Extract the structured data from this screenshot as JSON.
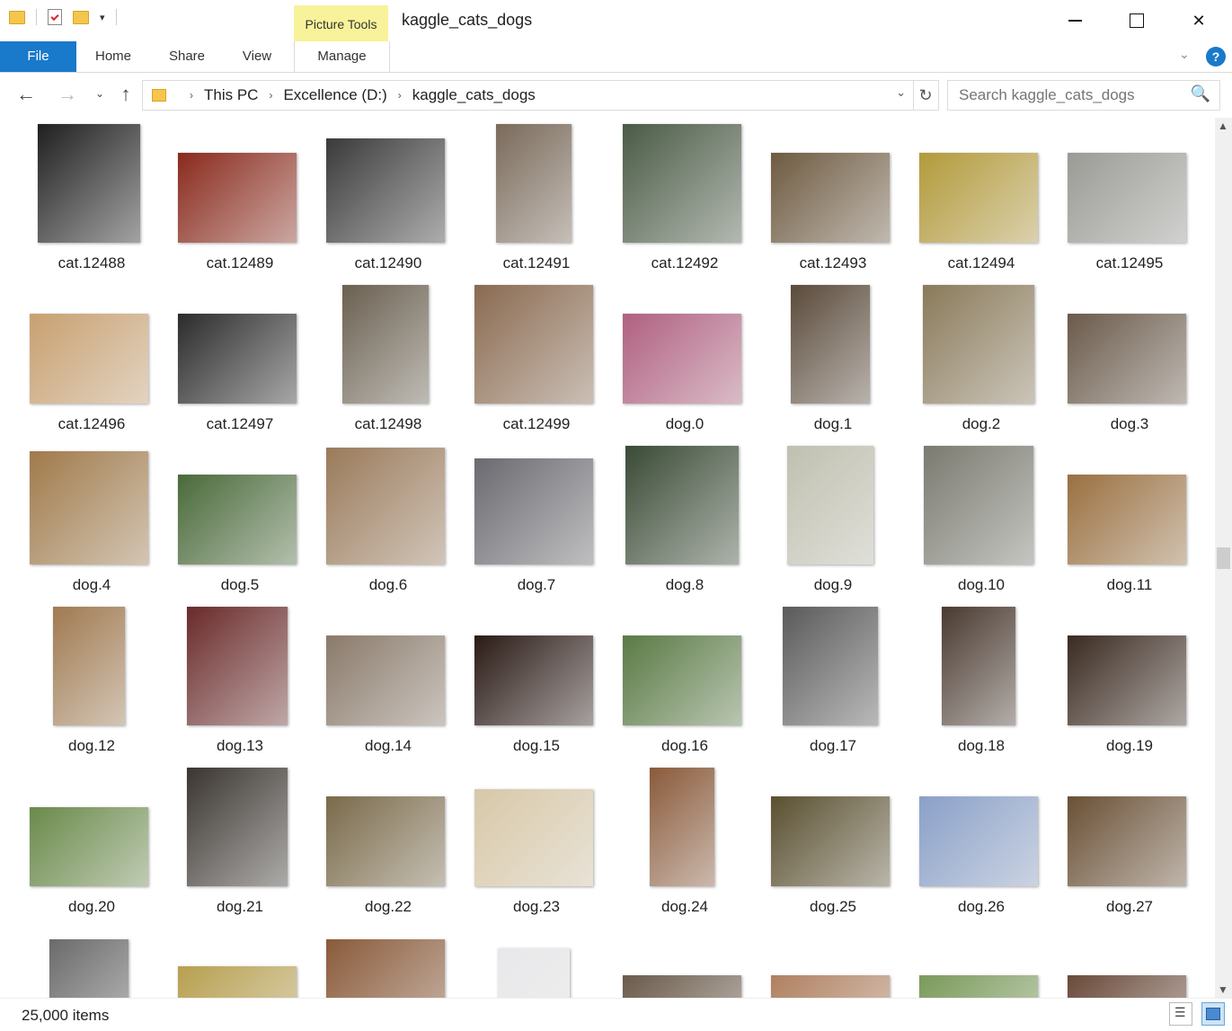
{
  "window": {
    "title": "kaggle_cats_dogs",
    "context_tab_group": "Picture Tools",
    "minimize": "—",
    "maximize": "",
    "close": "✕"
  },
  "quick_access": {
    "dropdown": "▾"
  },
  "ribbon": {
    "tabs": {
      "file": "File",
      "home": "Home",
      "share": "Share",
      "view": "View",
      "manage": "Manage"
    },
    "collapse": "⌄",
    "help": "?"
  },
  "nav": {
    "back": "←",
    "forward": "→",
    "recent": "⌄",
    "up": "↑",
    "breadcrumb": [
      "This PC",
      "Excellence (D:)",
      "kaggle_cats_dogs"
    ],
    "breadcrumb_sep": "›",
    "dropdown": "⌄",
    "refresh": "↻"
  },
  "search": {
    "placeholder": "Search kaggle_cats_dogs",
    "icon": "🔍"
  },
  "files": [
    {
      "name": "cat.12488",
      "color": "#1f1f1f"
    },
    {
      "name": "cat.12489",
      "color": "#8a2a1c"
    },
    {
      "name": "cat.12490",
      "color": "#3a3a3a"
    },
    {
      "name": "cat.12491",
      "color": "#7a6a5a"
    },
    {
      "name": "cat.12492",
      "color": "#4a5a45"
    },
    {
      "name": "cat.12493",
      "color": "#6e5a40"
    },
    {
      "name": "cat.12494",
      "color": "#b39a3a"
    },
    {
      "name": "cat.12495",
      "color": "#9a9a95"
    },
    {
      "name": "cat.12496",
      "color": "#c8a070"
    },
    {
      "name": "cat.12497",
      "color": "#2b2b2b"
    },
    {
      "name": "cat.12498",
      "color": "#6a6050"
    },
    {
      "name": "cat.12499",
      "color": "#8a6a50"
    },
    {
      "name": "dog.0",
      "color": "#b06080"
    },
    {
      "name": "dog.1",
      "color": "#5a4a3a"
    },
    {
      "name": "dog.2",
      "color": "#8a7a5a"
    },
    {
      "name": "dog.3",
      "color": "#6a5a4a"
    },
    {
      "name": "dog.4",
      "color": "#a07a4a"
    },
    {
      "name": "dog.5",
      "color": "#4a6a3a"
    },
    {
      "name": "dog.6",
      "color": "#9a7a5a"
    },
    {
      "name": "dog.7",
      "color": "#6a6a70"
    },
    {
      "name": "dog.8",
      "color": "#3a4a35"
    },
    {
      "name": "dog.9",
      "color": "#c0c0b0"
    },
    {
      "name": "dog.10",
      "color": "#7a7a70"
    },
    {
      "name": "dog.11",
      "color": "#9a7040"
    },
    {
      "name": "dog.12",
      "color": "#a07a50"
    },
    {
      "name": "dog.13",
      "color": "#6a2a2a"
    },
    {
      "name": "dog.14",
      "color": "#8a7a6a"
    },
    {
      "name": "dog.15",
      "color": "#2a1a15"
    },
    {
      "name": "dog.16",
      "color": "#5a7a45"
    },
    {
      "name": "dog.17",
      "color": "#5a5a5a"
    },
    {
      "name": "dog.18",
      "color": "#4a3a30"
    },
    {
      "name": "dog.19",
      "color": "#3a2a20"
    },
    {
      "name": "dog.20",
      "color": "#6a8a4a"
    },
    {
      "name": "dog.21",
      "color": "#3a3530"
    },
    {
      "name": "dog.22",
      "color": "#7a6a4a"
    },
    {
      "name": "dog.23",
      "color": "#d8c8a8"
    },
    {
      "name": "dog.24",
      "color": "#8a5a3a"
    },
    {
      "name": "dog.25",
      "color": "#5a5030"
    },
    {
      "name": "dog.26",
      "color": "#8aa0c8"
    },
    {
      "name": "dog.27",
      "color": "#6a5035"
    },
    {
      "name": "",
      "color": "#6a6a6a"
    },
    {
      "name": "",
      "color": "#b8a050"
    },
    {
      "name": "",
      "color": "#8a5a3a"
    },
    {
      "name": "",
      "color": "#e8e8ea"
    },
    {
      "name": "",
      "color": "#6a5a4a"
    },
    {
      "name": "",
      "color": "#b08060"
    },
    {
      "name": "",
      "color": "#7a9a5a"
    },
    {
      "name": "",
      "color": "#6a4a3a"
    }
  ],
  "status": {
    "item_count": "25,000 items"
  },
  "scrollbar": {
    "up": "▲",
    "down": "▼"
  }
}
